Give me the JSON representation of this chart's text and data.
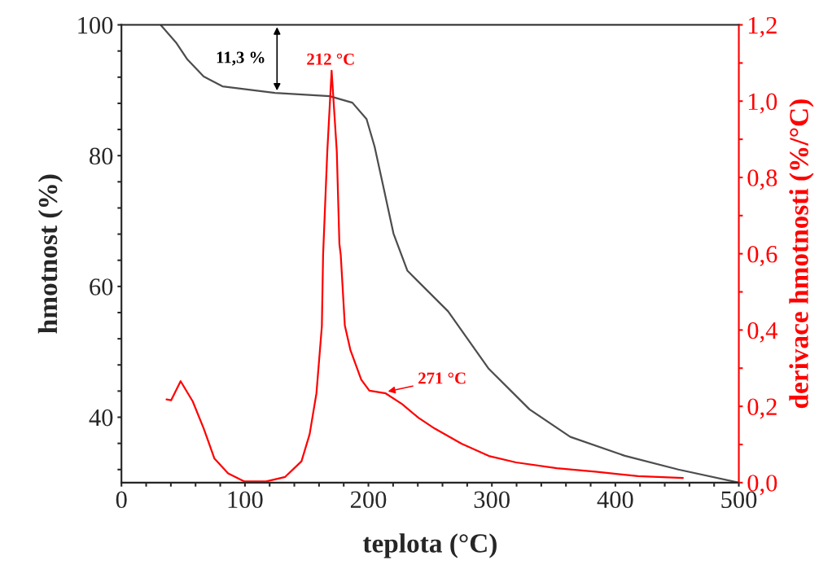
{
  "chart_data": {
    "type": "line",
    "xlabel": "teplota (°C)",
    "ylabel": "hmotnost (%)",
    "y2label": "derivace hmotnosti (%/°C)",
    "xlim": [
      0,
      500
    ],
    "xticks": [
      0,
      {
        "value": 20,
        "label": null
      },
      {
        "value": 40,
        "label": null
      },
      {
        "value": 60,
        "label": null
      },
      {
        "value": 80,
        "label": null
      },
      100,
      {
        "value": 120,
        "label": null
      },
      {
        "value": 140,
        "label": null
      },
      {
        "value": 160,
        "label": null
      },
      {
        "value": 180,
        "label": null
      },
      200,
      {
        "value": 220,
        "label": null
      },
      {
        "value": 240,
        "label": null
      },
      {
        "value": 260,
        "label": null
      },
      {
        "value": 280,
        "label": null
      },
      300,
      {
        "value": 320,
        "label": null
      },
      {
        "value": 340,
        "label": null
      },
      {
        "value": 360,
        "label": null
      },
      {
        "value": 380,
        "label": null
      },
      400,
      {
        "value": 420,
        "label": null
      },
      {
        "value": 440,
        "label": null
      },
      {
        "value": 460,
        "label": null
      },
      {
        "value": 480,
        "label": null
      },
      500
    ],
    "ylim": [
      30,
      100
    ],
    "yticks": [
      {
        "value": 32,
        "label": null
      },
      {
        "value": 36,
        "label": null
      },
      40,
      {
        "value": 44,
        "label": null
      },
      {
        "value": 48,
        "label": null
      },
      {
        "value": 52,
        "label": null
      },
      {
        "value": 56,
        "label": null
      },
      60,
      {
        "value": 64,
        "label": null
      },
      {
        "value": 68,
        "label": null
      },
      {
        "value": 72,
        "label": null
      },
      {
        "value": 76,
        "label": null
      },
      80,
      {
        "value": 84,
        "label": null
      },
      {
        "value": 88,
        "label": null
      },
      {
        "value": 92,
        "label": null
      },
      {
        "value": 96,
        "label": null
      },
      100
    ],
    "y2lim": [
      0,
      1.2
    ],
    "y2ticks": [
      {
        "value": 0,
        "label": "0,0"
      },
      {
        "value": 0.1,
        "label": null
      },
      {
        "value": 0.2,
        "label": "0,2"
      },
      {
        "value": 0.3,
        "label": null
      },
      {
        "value": 0.4,
        "label": "0,4"
      },
      {
        "value": 0.5,
        "label": null
      },
      {
        "value": 0.6,
        "label": "0,6"
      },
      {
        "value": 0.7,
        "label": null
      },
      {
        "value": 0.8,
        "label": "0,8"
      },
      {
        "value": 0.9,
        "label": null
      },
      {
        "value": 1.0,
        "label": "1,0"
      },
      {
        "value": 1.1,
        "label": null
      },
      {
        "value": 1.2,
        "label": "1,2"
      }
    ],
    "grid": false,
    "series": [
      {
        "color": "#4d4d4d",
        "x": [
          31.7,
          44.6,
          53.4,
          66.6,
          81.8,
          124.3,
          168.6,
          187,
          198.5,
          205,
          211.7,
          220.3,
          231.6,
          264.5,
          297.5,
          330.5,
          363.5,
          407.7,
          451,
          500
        ],
        "values": [
          100,
          97.2,
          94.7,
          92.1,
          90.6,
          89.6,
          89.1,
          88.1,
          85.6,
          81.4,
          75.6,
          68.1,
          62.4,
          56.2,
          47.4,
          41.2,
          37.0,
          34.1,
          32.0,
          30.0
        ]
      },
      {
        "color": "#ff0000",
        "axis": "y2",
        "x": [
          36.5,
          40.2,
          47.9,
          57.7,
          66.6,
          75.3,
          86.4,
          99.6,
          117.2,
          132.6,
          145.8,
          152.4,
          157.9,
          162.3,
          163.3,
          166.7,
          170.2,
          174.4,
          176.5,
          177.6,
          180.9,
          185.4,
          194.2,
          200.8,
          214,
          227.3,
          240.5,
          253.6,
          275.4,
          297.5,
          319.5,
          352.5,
          385.4,
          418.4,
          454.7
        ],
        "values": [
          0.218,
          0.216,
          0.266,
          0.213,
          0.142,
          0.063,
          0.024,
          0.003,
          0.003,
          0.015,
          0.056,
          0.127,
          0.234,
          0.41,
          0.597,
          0.868,
          1.08,
          0.868,
          0.626,
          0.597,
          0.412,
          0.348,
          0.27,
          0.241,
          0.234,
          0.206,
          0.17,
          0.142,
          0.102,
          0.07,
          0.053,
          0.038,
          0.028,
          0.017,
          0.012
        ]
      }
    ],
    "annotations": [
      {
        "text": "11,3 %",
        "x": 126,
        "y": 89.6
      },
      "212 °C",
      "271 °C"
    ]
  }
}
